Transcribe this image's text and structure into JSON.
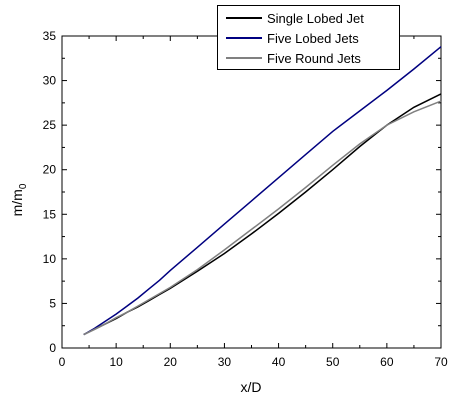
{
  "chart_data": {
    "type": "line",
    "xlabel": "x/D",
    "ylabel": {
      "main": "m/m",
      "subscript": "0"
    },
    "xlim": [
      0,
      70
    ],
    "ylim": [
      0,
      35
    ],
    "xticks": [
      0,
      10,
      20,
      30,
      40,
      50,
      60,
      70
    ],
    "yticks": [
      0,
      5,
      10,
      15,
      20,
      25,
      30,
      35
    ],
    "grid": false,
    "legend_position": "top-right",
    "series": [
      {
        "name": "Single Lobed Jet",
        "color": "#000000",
        "x": [
          4,
          6,
          8,
          10,
          12,
          14,
          16,
          18,
          20,
          25,
          30,
          35,
          40,
          45,
          50,
          55,
          60,
          65,
          70
        ],
        "y": [
          1.5,
          2.1,
          2.7,
          3.3,
          4.0,
          4.6,
          5.3,
          6.0,
          6.7,
          8.6,
          10.6,
          12.8,
          15.1,
          17.5,
          20.0,
          22.6,
          25.0,
          27.0,
          28.5
        ]
      },
      {
        "name": "Five Lobed Jets",
        "color": "#000080",
        "x": [
          4,
          6,
          8,
          10,
          12,
          14,
          16,
          18,
          20,
          25,
          30,
          35,
          40,
          45,
          50,
          55,
          60,
          65,
          70
        ],
        "y": [
          1.5,
          2.2,
          3.0,
          3.8,
          4.7,
          5.6,
          6.6,
          7.6,
          8.7,
          11.3,
          13.9,
          16.5,
          19.1,
          21.7,
          24.3,
          26.6,
          28.9,
          31.3,
          33.8
        ]
      },
      {
        "name": "Five Round Jets",
        "color": "#808080",
        "x": [
          4,
          6,
          8,
          10,
          12,
          14,
          16,
          18,
          20,
          25,
          30,
          35,
          40,
          45,
          50,
          55,
          60,
          65,
          70
        ],
        "y": [
          1.5,
          2.1,
          2.7,
          3.4,
          4.0,
          4.7,
          5.4,
          6.1,
          6.8,
          8.8,
          11.0,
          13.3,
          15.6,
          18.0,
          20.5,
          22.9,
          25.0,
          26.5,
          27.7
        ]
      }
    ]
  }
}
